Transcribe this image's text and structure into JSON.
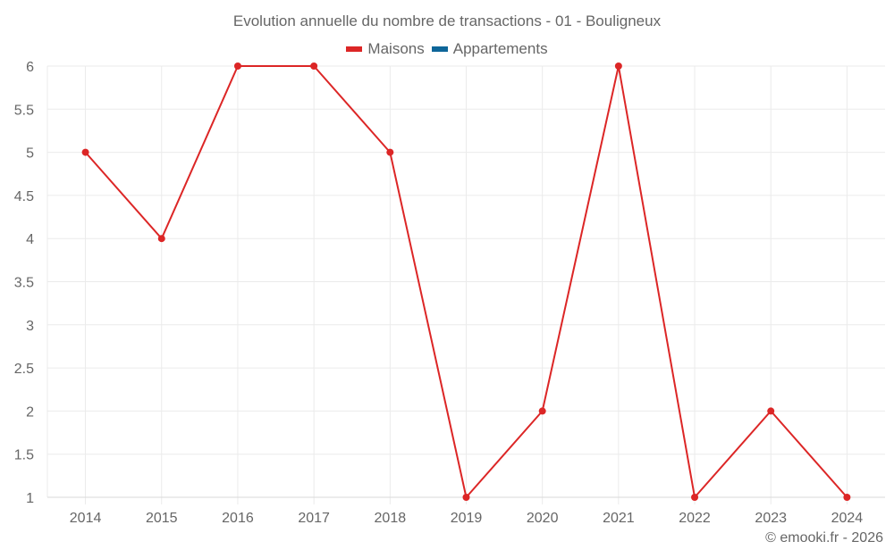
{
  "chart_data": {
    "type": "line",
    "title": "Evolution annuelle du nombre de transactions - 01 - Bouligneux",
    "xlabel": "",
    "ylabel": "",
    "categories": [
      "2014",
      "2015",
      "2016",
      "2017",
      "2018",
      "2019",
      "2020",
      "2021",
      "2022",
      "2023",
      "2024"
    ],
    "series": [
      {
        "name": "Maisons",
        "color": "#dc2626",
        "values": [
          5,
          4,
          6,
          6,
          5,
          1,
          2,
          6,
          1,
          2,
          1
        ]
      },
      {
        "name": "Appartements",
        "color": "#0e6699",
        "values": []
      }
    ],
    "ylim": [
      1,
      6
    ],
    "yticks": [
      "1",
      "1.5",
      "2",
      "2.5",
      "3",
      "3.5",
      "4",
      "4.5",
      "5",
      "5.5",
      "6"
    ],
    "grid": true,
    "legend_position": "top"
  },
  "legend": {
    "items": [
      {
        "label": "Maisons",
        "color": "#dc2626"
      },
      {
        "label": "Appartements",
        "color": "#0e6699"
      }
    ]
  },
  "credit": "© emooki.fr - 2026"
}
